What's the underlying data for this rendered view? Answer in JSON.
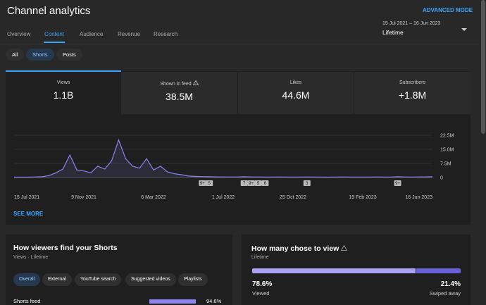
{
  "header": {
    "title": "Channel analytics",
    "advanced_mode": "ADVANCED MODE"
  },
  "tabs": [
    "Overview",
    "Content",
    "Audience",
    "Revenue",
    "Research"
  ],
  "date_range": {
    "range": "15 Jul 2021 – 16 Jun 2023",
    "period": "Lifetime"
  },
  "filters": [
    "All",
    "Shorts",
    "Posts"
  ],
  "metrics": [
    {
      "label": "Views",
      "value": "1.1B"
    },
    {
      "label": "Shown in feed",
      "value": "38.5M"
    },
    {
      "label": "Likes",
      "value": "44.6M"
    },
    {
      "label": "Subscribers",
      "value": "+1.8M"
    }
  ],
  "chart_data": {
    "type": "line",
    "color": "#8c82f0",
    "categories": [
      "15 Jul 2021",
      null,
      null,
      null,
      null,
      null,
      null,
      null,
      null,
      null,
      "9 Nov 2021",
      null,
      null,
      null,
      null,
      null,
      null,
      null,
      null,
      null,
      "6 Mar 2022",
      null,
      null,
      null,
      null,
      null,
      null,
      null,
      null,
      null,
      "1 Jul 2022",
      null,
      null,
      null,
      null,
      null,
      null,
      null,
      null,
      null,
      "25 Oct 2022",
      null,
      null,
      null,
      null,
      null,
      null,
      null,
      null,
      null,
      "19 Feb 2023",
      null,
      null,
      null,
      null,
      null,
      null,
      null,
      null,
      null,
      "16 Jun 2023"
    ],
    "values": [
      200000,
      200000,
      200000,
      300000,
      400000,
      1000000,
      2500000,
      4500000,
      12000000,
      4000000,
      3500000,
      2500000,
      6000000,
      4500000,
      9000000,
      20000000,
      10000000,
      6000000,
      5000000,
      10000000,
      4000000,
      6000000,
      3000000,
      2000000,
      1500000,
      800000,
      600000,
      500000,
      400000,
      350000,
      300000,
      300000,
      300000,
      400000,
      300000,
      300000,
      250000,
      250000,
      300000,
      250000,
      250000,
      250000,
      300000,
      250000,
      250000,
      200000,
      250000,
      300000,
      250000,
      250000,
      250000,
      250000,
      300000,
      250000,
      250000,
      400000,
      300000,
      250000,
      300000,
      350000,
      400000
    ],
    "ylim": [
      0,
      22500000
    ],
    "yticks": [
      0,
      {
        "value": 7500000,
        "label": "7.5M"
      },
      {
        "value": 15000000,
        "label": "15.0M"
      },
      {
        "value": 22500000,
        "label": "22.5M"
      }
    ],
    "grid": true,
    "annotations": [
      "9+",
      "5",
      "7",
      "9+",
      "5",
      "6",
      "3",
      "9+"
    ]
  },
  "see_more": "SEE MORE",
  "traffic": {
    "title": "How viewers find your Shorts",
    "subtitle": "Views · Lifetime",
    "chips": [
      "Overall",
      "External",
      "YouTube search",
      "Suggested videos",
      "Playlists"
    ],
    "rows": [
      {
        "source": "Shorts feed",
        "value": 94.6,
        "value_label": "94.6%"
      }
    ]
  },
  "chose_to_view": {
    "title": "How many chose to view",
    "subtitle": "Lifetime",
    "viewed": {
      "value": 78.6,
      "value_label": "78.6%",
      "label": "Viewed"
    },
    "swiped": {
      "value": 21.4,
      "value_label": "21.4%",
      "label": "Swiped away"
    }
  }
}
